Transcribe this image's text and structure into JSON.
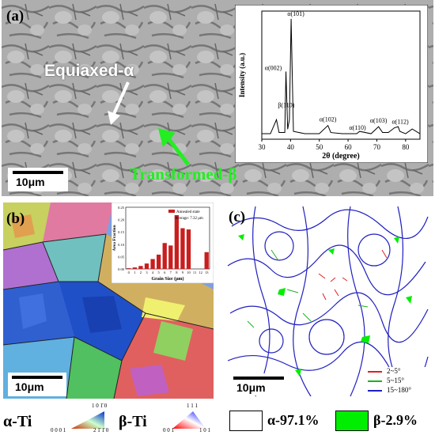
{
  "panel_a": {
    "letter": "(a)",
    "label_equiaxed": "Equiaxed-α",
    "label_transformed": "Transformed-β",
    "scale_bar": "10μm"
  },
  "panel_b": {
    "letter": "(b)",
    "scale_bar": "10μm"
  },
  "panel_c": {
    "letter": "(c)",
    "scale_bar": "10μm",
    "legend": [
      {
        "label": "2~5°",
        "color": "#e02020"
      },
      {
        "label": "5~15°",
        "color": "#20b020"
      },
      {
        "label": "15~180°",
        "color": "#2020c0"
      }
    ]
  },
  "ipf_legend": {
    "alpha_label": "α-Ti",
    "alpha_corners": [
      "1 0 1̄ 0",
      "0 0 0 1",
      "2 1̄ 1̄ 0"
    ],
    "beta_label": "β-Ti",
    "beta_corners": [
      "1 1 1",
      "0 0 1",
      "1 0 1"
    ]
  },
  "phase_legend": [
    {
      "label": "α-97.1%",
      "color": "#ffffff"
    },
    {
      "label": "β-2.9%",
      "color": "#00ee00"
    }
  ],
  "chart_data": [
    {
      "type": "line",
      "xlabel": "2θ (degree)",
      "ylabel": "Intensity (a.u.)",
      "xlim": [
        30,
        85
      ],
      "xticks": [
        30,
        40,
        50,
        60,
        70,
        80
      ],
      "x": [
        30,
        33,
        35.1,
        36,
        38,
        38.4,
        39,
        39.6,
        40.2,
        41,
        45,
        50,
        53,
        54,
        58,
        63,
        64,
        68,
        70.6,
        72,
        74,
        76.1,
        77.4,
        78,
        80,
        82.3,
        85
      ],
      "y": [
        2,
        2,
        14,
        3,
        3,
        55,
        6,
        14,
        100,
        4,
        2,
        2,
        9,
        3,
        2,
        2,
        4,
        2,
        8,
        3,
        3,
        7,
        8,
        4,
        2,
        6,
        2
      ],
      "peaks": [
        {
          "x": 38.4,
          "label": "α(002)"
        },
        {
          "x": 39.6,
          "label": "β(110)"
        },
        {
          "x": 40.2,
          "label": "α(101)"
        },
        {
          "x": 53.0,
          "label": "α(102)"
        },
        {
          "x": 63.3,
          "label": "α(110)"
        },
        {
          "x": 70.6,
          "label": "α(103)"
        },
        {
          "x": 76.5,
          "label": "α(112)"
        }
      ]
    },
    {
      "type": "bar",
      "xlabel": "Grain Size (μm)",
      "ylabel": "Area Fraction",
      "legend": "Annealed state",
      "annotation": "Average: 7.32 μm",
      "color": "#c81e1e",
      "ylim": [
        0,
        0.25
      ],
      "yticks": [
        0,
        0.05,
        0.1,
        0.15,
        0.2,
        0.25
      ],
      "categories": [
        0,
        1,
        2,
        3,
        4,
        5,
        6,
        7,
        8,
        9,
        10,
        11,
        12,
        13
      ],
      "values": [
        0.003,
        0.006,
        0.012,
        0.022,
        0.04,
        0.058,
        0.105,
        0.095,
        0.218,
        0.165,
        0.16,
        0.0,
        0.0,
        0.068
      ]
    }
  ]
}
